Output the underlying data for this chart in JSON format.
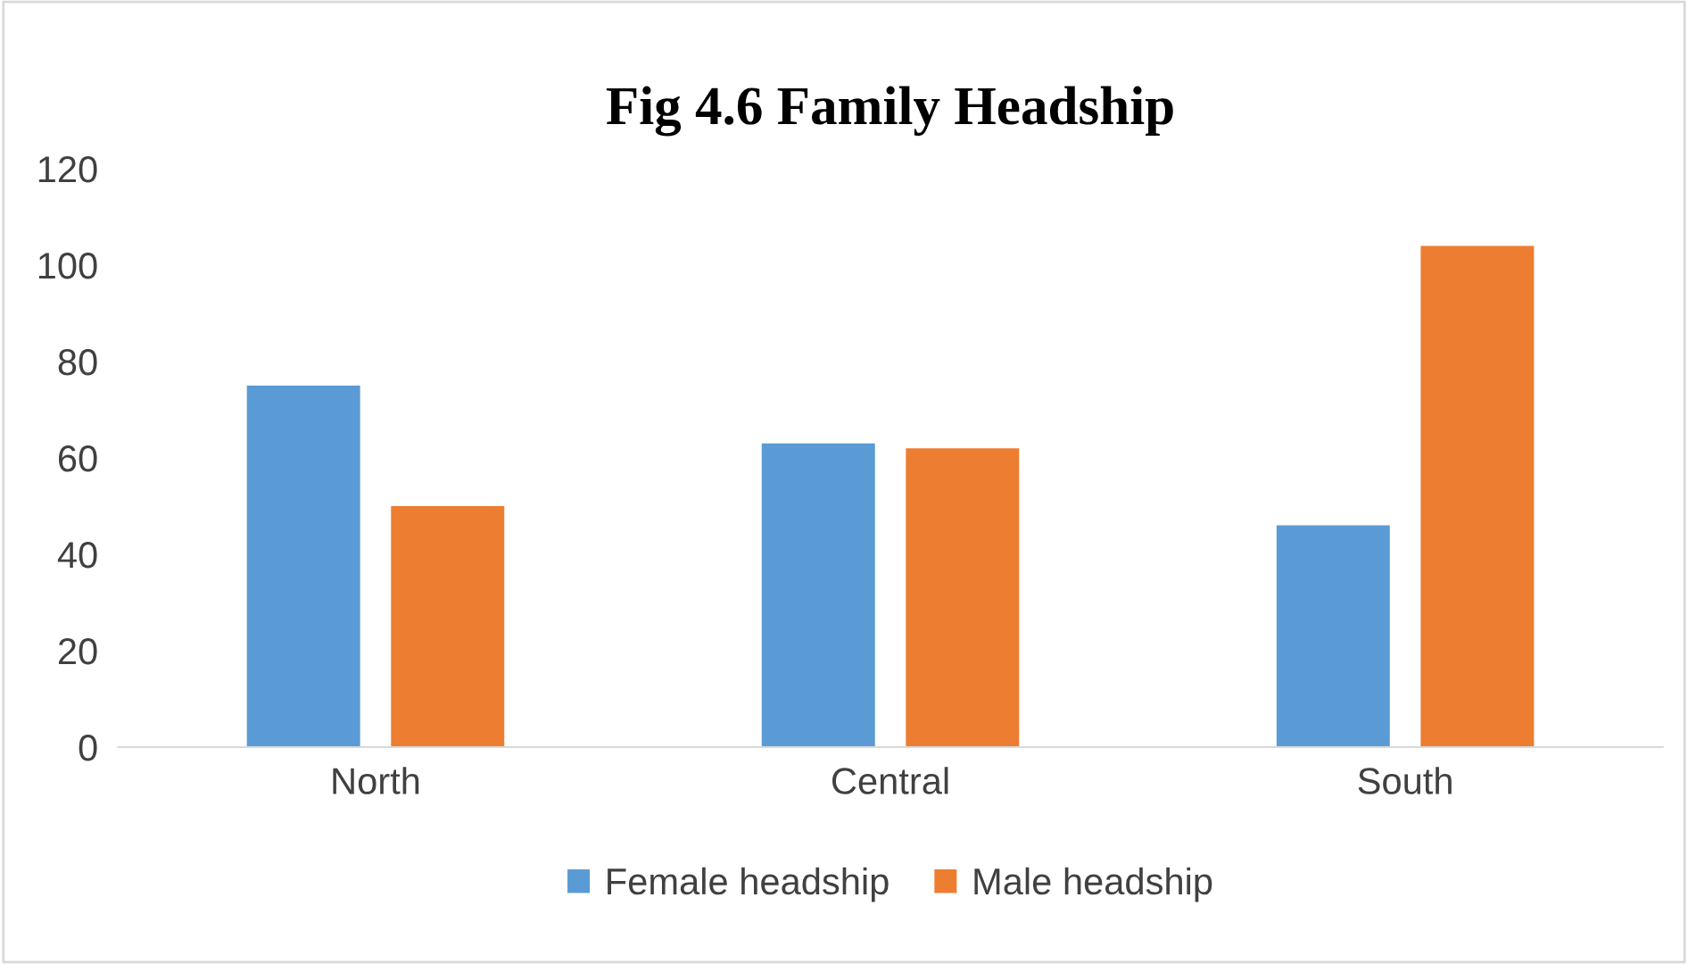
{
  "chart_data": {
    "type": "bar",
    "title": "Fig 4.6 Family Headship",
    "categories": [
      "North",
      "Central",
      "South"
    ],
    "series": [
      {
        "name": "Female headship",
        "color": "#5b9bd5",
        "values": [
          75,
          63,
          46
        ]
      },
      {
        "name": "Male headship",
        "color": "#ed7d31",
        "values": [
          50,
          62,
          104
        ]
      }
    ],
    "ylim": [
      0,
      120
    ],
    "yticks": [
      0,
      20,
      40,
      60,
      80,
      100,
      120
    ],
    "grid": false,
    "legend": "bottom"
  }
}
